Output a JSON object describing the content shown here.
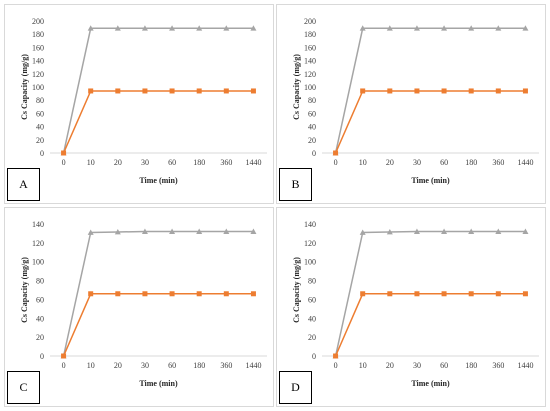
{
  "colors": {
    "series_gray": "#a5a5a5",
    "series_orange": "#ed7d31",
    "axis": "#d9d9d9"
  },
  "chart_data": [
    {
      "type": "line",
      "panel_label": "A",
      "xlabel": "Time (min)",
      "ylabel": "Cs Capacity (mg/g)",
      "categories": [
        "0",
        "10",
        "20",
        "30",
        "60",
        "180",
        "360",
        "1440"
      ],
      "ylim": [
        0,
        200
      ],
      "yticks": [
        0,
        20,
        40,
        60,
        80,
        100,
        120,
        140,
        160,
        180,
        200
      ],
      "grid": false,
      "series": [
        {
          "color": "#a5a5a5",
          "marker": "triangle",
          "values": [
            0,
            189,
            189,
            189,
            189,
            189,
            189,
            189
          ]
        },
        {
          "color": "#ed7d31",
          "marker": "square",
          "values": [
            0,
            94,
            94,
            94,
            94,
            94,
            94,
            94
          ]
        }
      ]
    },
    {
      "type": "line",
      "panel_label": "B",
      "xlabel": "Time (min)",
      "ylabel": "Cs Capacity (mg/g)",
      "categories": [
        "0",
        "10",
        "20",
        "30",
        "60",
        "180",
        "360",
        "1440"
      ],
      "ylim": [
        0,
        200
      ],
      "yticks": [
        0,
        20,
        40,
        60,
        80,
        100,
        120,
        140,
        160,
        180,
        200
      ],
      "grid": false,
      "series": [
        {
          "color": "#a5a5a5",
          "marker": "triangle",
          "values": [
            0,
            189,
            189,
            189,
            189,
            189,
            189,
            189
          ]
        },
        {
          "color": "#ed7d31",
          "marker": "square",
          "values": [
            0,
            94,
            94,
            94,
            94,
            94,
            94,
            94
          ]
        }
      ]
    },
    {
      "type": "line",
      "panel_label": "C",
      "xlabel": "Time (min)",
      "ylabel": "Cs Capacity (mg/g)",
      "categories": [
        "0",
        "10",
        "20",
        "30",
        "60",
        "180",
        "360",
        "1440"
      ],
      "ylim": [
        0,
        140
      ],
      "yticks": [
        0,
        20,
        40,
        60,
        80,
        100,
        120,
        140
      ],
      "grid": false,
      "series": [
        {
          "color": "#a5a5a5",
          "marker": "triangle",
          "values": [
            0,
            131,
            131.5,
            132,
            132,
            132,
            132,
            132
          ]
        },
        {
          "color": "#ed7d31",
          "marker": "square",
          "values": [
            0,
            66,
            66,
            66,
            66,
            66,
            66,
            66
          ]
        }
      ]
    },
    {
      "type": "line",
      "panel_label": "D",
      "xlabel": "Time (min)",
      "ylabel": "Cs Capacity (mg/g)",
      "categories": [
        "0",
        "10",
        "20",
        "30",
        "60",
        "180",
        "360",
        "1440"
      ],
      "ylim": [
        0,
        140
      ],
      "yticks": [
        0,
        20,
        40,
        60,
        80,
        100,
        120,
        140
      ],
      "grid": false,
      "series": [
        {
          "color": "#a5a5a5",
          "marker": "triangle",
          "values": [
            0,
            131,
            131.5,
            132,
            132,
            132,
            132,
            132
          ]
        },
        {
          "color": "#ed7d31",
          "marker": "square",
          "values": [
            0,
            66,
            66,
            66,
            66,
            66,
            66,
            66
          ]
        }
      ]
    }
  ]
}
